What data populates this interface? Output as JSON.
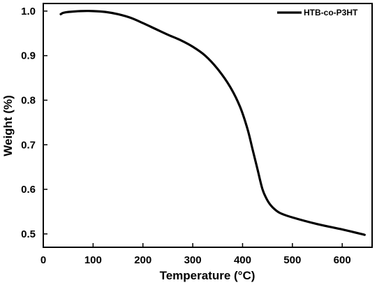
{
  "chart_data": {
    "type": "line",
    "xlabel": "Temperature (°C)",
    "ylabel": "Weight (%)",
    "xlim": [
      0,
      660
    ],
    "ylim": [
      0.47,
      1.017
    ],
    "xticks": [
      0,
      100,
      200,
      300,
      400,
      500,
      600
    ],
    "yticks": [
      0.5,
      0.6,
      0.7,
      0.8,
      0.9,
      1.0
    ],
    "ytick_labels": [
      "0.5",
      "0.6",
      "0.7",
      "0.8",
      "0.9",
      "1.0"
    ],
    "grid": false,
    "legend_position": "top-right",
    "series": [
      {
        "name": "HTB-co-P3HT",
        "color": "#000000",
        "x": [
          35,
          40,
          50,
          75,
          100,
          125,
          150,
          175,
          200,
          225,
          250,
          275,
          300,
          325,
          350,
          375,
          395,
          410,
          420,
          430,
          440,
          450,
          460,
          475,
          500,
          550,
          600,
          645
        ],
        "y": [
          0.993,
          0.996,
          0.998,
          1.0,
          1.0,
          0.998,
          0.993,
          0.985,
          0.973,
          0.96,
          0.947,
          0.935,
          0.92,
          0.9,
          0.87,
          0.83,
          0.785,
          0.735,
          0.69,
          0.645,
          0.6,
          0.575,
          0.56,
          0.547,
          0.537,
          0.522,
          0.51,
          0.498
        ]
      }
    ]
  }
}
